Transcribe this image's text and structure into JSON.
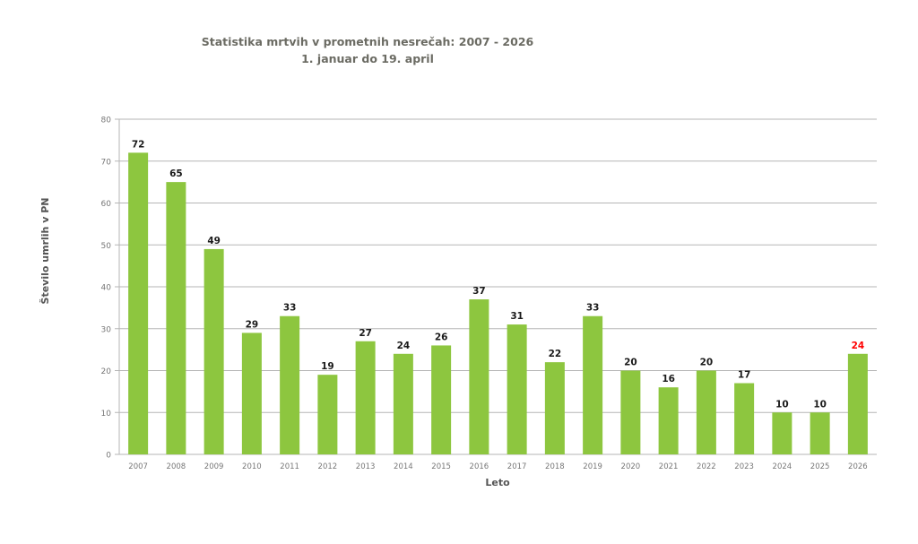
{
  "chart_data": {
    "type": "bar",
    "title": "Statistika mrtvih v prometnih nesrečah: 2007 - 2026",
    "subtitle": "1. januar do 19. april",
    "xlabel": "Leto",
    "ylabel": "Število umrlih v PN",
    "ylim": [
      0,
      80
    ],
    "yticks": [
      0,
      10,
      20,
      30,
      40,
      50,
      60,
      70,
      80
    ],
    "grid": true,
    "categories": [
      "2007",
      "2008",
      "2009",
      "2010",
      "2011",
      "2012",
      "2013",
      "2014",
      "2015",
      "2016",
      "2017",
      "2018",
      "2019",
      "2020",
      "2021",
      "2022",
      "2023",
      "2024",
      "2025",
      "2026"
    ],
    "values": [
      72,
      65,
      49,
      29,
      33,
      19,
      27,
      24,
      26,
      37,
      31,
      22,
      33,
      20,
      16,
      20,
      17,
      10,
      10,
      24
    ],
    "bar_color": "#8dc63f",
    "label_color": "#1a1a1a",
    "highlight_label_color": "#ff0000",
    "highlight_category": "2026"
  }
}
